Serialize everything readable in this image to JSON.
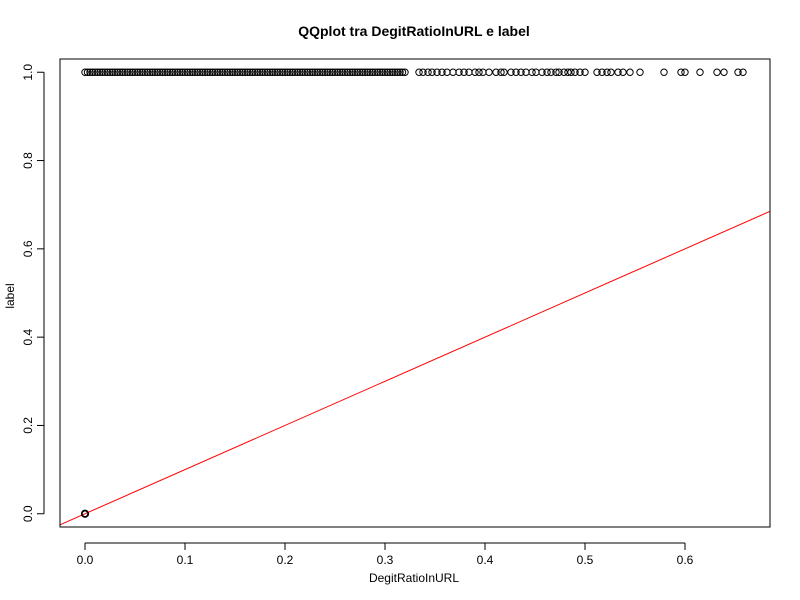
{
  "chart_data": {
    "type": "scatter",
    "title": "QQplot tra DegitRatioInURL e label",
    "xlabel": "DegitRatioInURL",
    "ylabel": "label",
    "xlim": [
      -0.025,
      0.685
    ],
    "ylim": [
      -0.03,
      1.03
    ],
    "xticks": [
      0.0,
      0.1,
      0.2,
      0.3,
      0.4,
      0.5,
      0.6
    ],
    "xtick_labels": [
      "0.0",
      "0.1",
      "0.2",
      "0.3",
      "0.4",
      "0.5",
      "0.6"
    ],
    "yticks": [
      0.0,
      0.2,
      0.4,
      0.6,
      0.8,
      1.0
    ],
    "ytick_labels": [
      "0.0",
      "0.2",
      "0.4",
      "0.6",
      "0.8",
      "1.0"
    ],
    "grid": false,
    "point_color": "#000000",
    "line_color": "#ff0000",
    "series": [
      {
        "y": 1.0,
        "x_dense_range": [
          0.0,
          0.32
        ],
        "x_sparse": [
          0.334,
          0.338,
          0.343,
          0.347,
          0.352,
          0.357,
          0.362,
          0.368,
          0.374,
          0.379,
          0.384,
          0.39,
          0.394,
          0.398,
          0.404,
          0.411,
          0.416,
          0.419,
          0.426,
          0.431,
          0.436,
          0.441,
          0.447,
          0.451,
          0.457,
          0.462,
          0.466,
          0.471,
          0.474,
          0.479,
          0.483,
          0.486,
          0.49,
          0.495,
          0.5,
          0.512,
          0.517,
          0.522,
          0.526,
          0.533,
          0.538,
          0.545,
          0.555,
          0.579,
          0.596,
          0.6,
          0.615,
          0.632,
          0.639,
          0.653,
          0.658
        ]
      },
      {
        "y": 0.0,
        "x_points": [
          0.0
        ]
      }
    ],
    "reference_line": {
      "slope": 1,
      "intercept": 0
    }
  }
}
